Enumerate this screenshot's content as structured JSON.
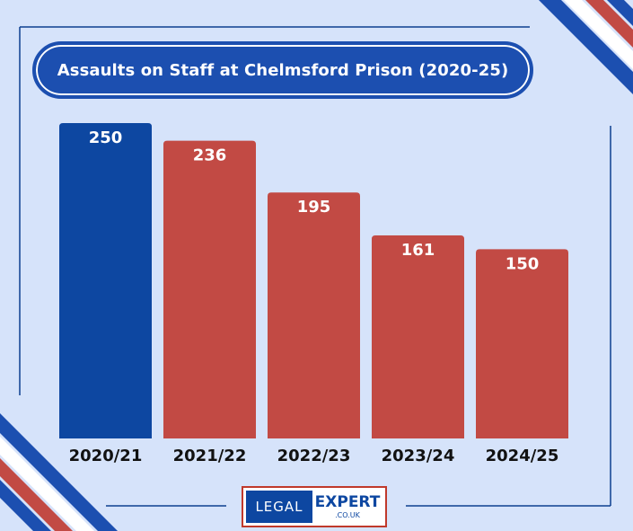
{
  "title": "Assaults on Staff at Chelmsford Prison (2020-25)",
  "logo": {
    "part1": "LEGAL",
    "part2": "EXPERT",
    "part3": ".CO.UK"
  },
  "colors": {
    "background": "#d6e3fa",
    "highlight_bar": "#0d47a1",
    "bar": "#c24a44",
    "frame": "#0d3f8f",
    "title_bg": "#1c4fb0"
  },
  "chart_data": {
    "type": "bar",
    "title": "Assaults on Staff at Chelmsford Prison (2020-25)",
    "xlabel": "",
    "ylabel": "",
    "categories": [
      "2020/21",
      "2021/22",
      "2022/23",
      "2023/24",
      "2024/25"
    ],
    "values": [
      250,
      236,
      195,
      161,
      150
    ],
    "bar_colors": [
      "#0d47a1",
      "#c24a44",
      "#c24a44",
      "#c24a44",
      "#c24a44"
    ],
    "data_labels": [
      "250",
      "236",
      "195",
      "161",
      "150"
    ],
    "ylim": [
      0,
      250
    ],
    "grid": false,
    "legend": "none"
  }
}
